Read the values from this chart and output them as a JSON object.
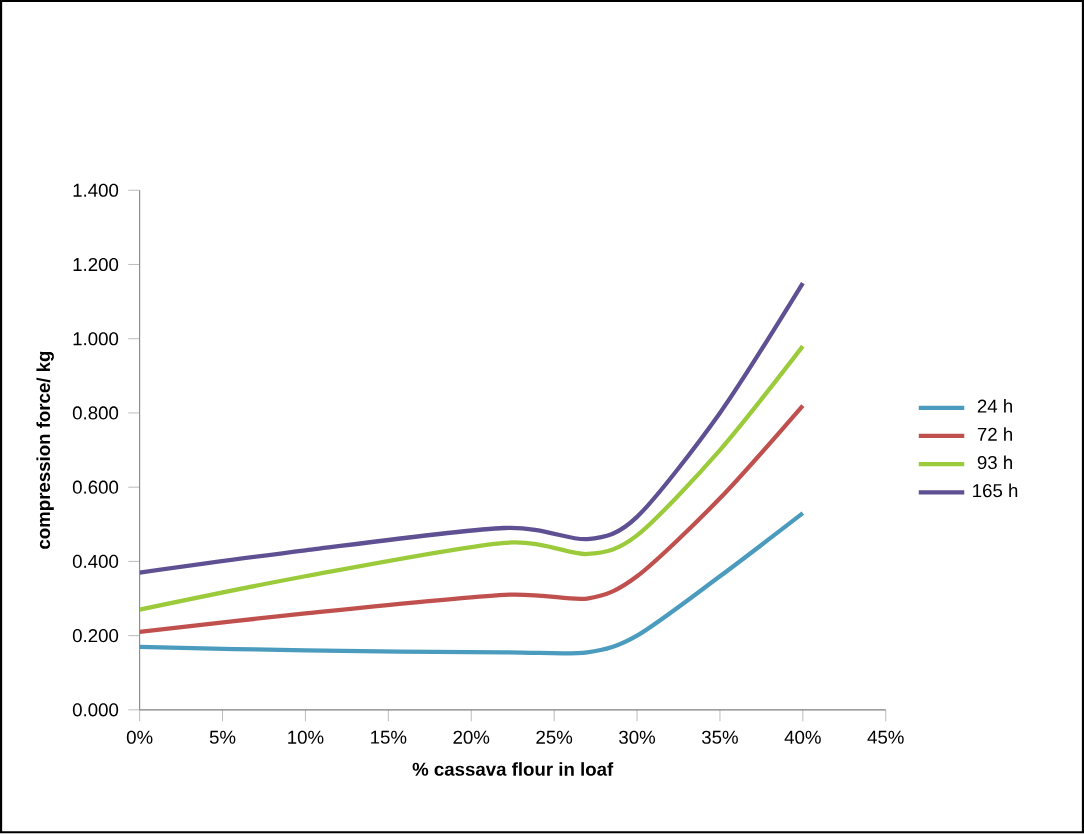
{
  "chart_data": {
    "type": "line",
    "xlabel": "% cassava flour in loaf",
    "ylabel": "compression force/ kg",
    "x": [
      0,
      10,
      22,
      27,
      30,
      35,
      40
    ],
    "series": [
      {
        "name": "24 h",
        "color": "#4a9bbd",
        "values": [
          0.17,
          0.16,
          0.155,
          0.155,
          0.2,
          0.36,
          0.53
        ]
      },
      {
        "name": "72 h",
        "color": "#c0504d",
        "values": [
          0.21,
          0.26,
          0.31,
          0.3,
          0.36,
          0.57,
          0.82
        ]
      },
      {
        "name": "93 h",
        "color": "#9bcb3b",
        "values": [
          0.27,
          0.36,
          0.45,
          0.42,
          0.47,
          0.7,
          0.98
        ]
      },
      {
        "name": "165 h",
        "color": "#5f4f93",
        "values": [
          0.37,
          0.43,
          0.49,
          0.46,
          0.52,
          0.8,
          1.15
        ]
      }
    ],
    "xlim": [
      0,
      45
    ],
    "xticks": [
      {
        "value": 0,
        "label": "0%"
      },
      {
        "value": 5,
        "label": "5%"
      },
      {
        "value": 10,
        "label": "10%"
      },
      {
        "value": 15,
        "label": "15%"
      },
      {
        "value": 20,
        "label": "20%"
      },
      {
        "value": 25,
        "label": "25%"
      },
      {
        "value": 30,
        "label": "30%"
      },
      {
        "value": 35,
        "label": "35%"
      },
      {
        "value": 40,
        "label": "40%"
      },
      {
        "value": 45,
        "label": "45%"
      }
    ],
    "ylim": [
      0,
      1.4
    ],
    "yticks": [
      {
        "value": 0,
        "label": "0.000"
      },
      {
        "value": 0.2,
        "label": "0.200"
      },
      {
        "value": 0.4,
        "label": "0.400"
      },
      {
        "value": 0.6,
        "label": "0.600"
      },
      {
        "value": 0.8,
        "label": "0.800"
      },
      {
        "value": 1.0,
        "label": "1.000"
      },
      {
        "value": 1.2,
        "label": "1.200"
      },
      {
        "value": 1.4,
        "label": "1.400"
      }
    ],
    "legend": "right",
    "grid": false,
    "marker": "none",
    "line_style": "solid"
  }
}
